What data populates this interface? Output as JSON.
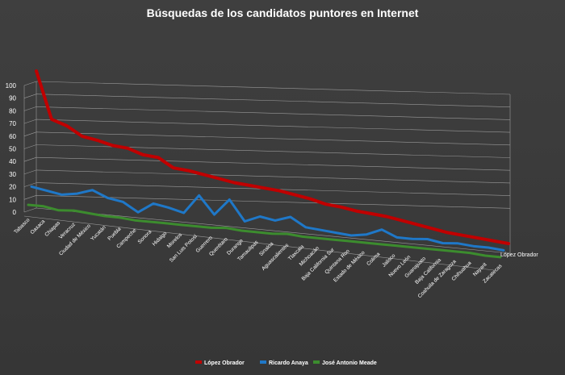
{
  "chart_data": {
    "type": "line",
    "title": "Búsquedas de los candidatos puntores en Internet",
    "categories": [
      "Tabasco",
      "Oaxaca",
      "Chiapas",
      "Veracruz",
      "Ciudad de México",
      "Yucatán",
      "Puebla",
      "Campeche",
      "Sonora",
      "Hidalgo",
      "Morelos",
      "San Luis Potosí",
      "Guerrero",
      "Querétaro",
      "Durango",
      "Tamaulipas",
      "Sinaloa",
      "Aguascalientes",
      "Tlaxcala",
      "Michoacán",
      "Baja California Sur",
      "Quintana Roo",
      "Estado de México",
      "Colima",
      "Jalisco",
      "Nuevo León",
      "Guanajuato",
      "Baja California",
      "Coahuila de Zaragoza",
      "Chihuahua",
      "Nayarit",
      "Zacatecas"
    ],
    "y_ticks": [
      "100",
      "90",
      "80",
      "70",
      "60",
      "50",
      "40",
      "30",
      "20",
      "10",
      "0"
    ],
    "ylim": [
      0,
      100
    ],
    "series_axis_label": "López Obrador",
    "series": [
      {
        "name": "López Obrador",
        "color": "#c00000",
        "values": [
          100,
          63,
          59,
          52,
          50,
          47,
          46,
          42,
          41,
          34,
          33,
          31,
          29,
          27,
          26,
          25,
          24,
          22,
          20,
          17,
          16,
          14,
          13,
          12,
          10,
          8,
          6,
          4,
          3,
          2,
          1,
          0
        ]
      },
      {
        "name": "Ricardo Anaya",
        "color": "#1f78c8",
        "values": [
          15,
          13,
          11,
          13,
          17,
          12,
          10,
          3,
          11,
          9,
          6,
          21,
          7,
          20,
          4,
          9,
          7,
          11,
          4,
          3,
          2,
          1,
          3,
          8,
          3,
          3,
          4,
          2,
          3,
          2,
          2,
          1
        ]
      },
      {
        "name": "José Antonio Meade",
        "color": "#3c8c2e",
        "values": [
          7,
          7,
          5,
          6,
          5,
          4,
          4,
          3,
          3,
          3,
          3,
          3,
          3,
          4,
          3,
          3,
          3,
          4,
          3,
          3,
          3,
          3,
          3,
          3,
          3,
          3,
          3,
          3,
          3,
          3,
          2,
          2
        ]
      }
    ],
    "legend_position": "bottom",
    "grid": true
  }
}
